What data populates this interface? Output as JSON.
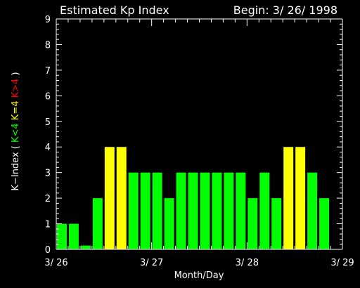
{
  "chart_data": {
    "type": "bar",
    "title": "Estimated Kp Index",
    "begin_label": "Begin: 3/ 26/ 1998",
    "xlabel": "Month/Day",
    "ylabel_parts": [
      {
        "text": "K−Index ( ",
        "color": "#ffffff"
      },
      {
        "text": "K<4 ",
        "color": "#00ff00"
      },
      {
        "text": "K=4 ",
        "color": "#ffff00"
      },
      {
        "text": "K>4",
        "color": "#ff0000"
      },
      {
        "text": " )",
        "color": "#ffffff"
      }
    ],
    "ylim": [
      0,
      9
    ],
    "yticks": [
      0,
      1,
      2,
      3,
      4,
      5,
      6,
      7,
      8,
      9
    ],
    "xlim": [
      0,
      24
    ],
    "xticks": [
      {
        "pos": 0,
        "label": "3/ 26"
      },
      {
        "pos": 8,
        "label": "3/ 27"
      },
      {
        "pos": 16,
        "label": "3/ 28"
      },
      {
        "pos": 24,
        "label": "3/ 29"
      }
    ],
    "interval_hours": 3,
    "values": [
      1,
      1,
      0.15,
      2,
      4,
      4,
      3,
      3,
      3,
      2,
      3,
      3,
      3,
      3,
      3,
      3,
      2,
      3,
      2,
      4,
      4,
      3,
      2
    ],
    "colors": {
      "below": "#00ff00",
      "equal": "#ffff00",
      "above": "#ff0000",
      "axes": "#ffffff",
      "background": "#000000"
    }
  }
}
